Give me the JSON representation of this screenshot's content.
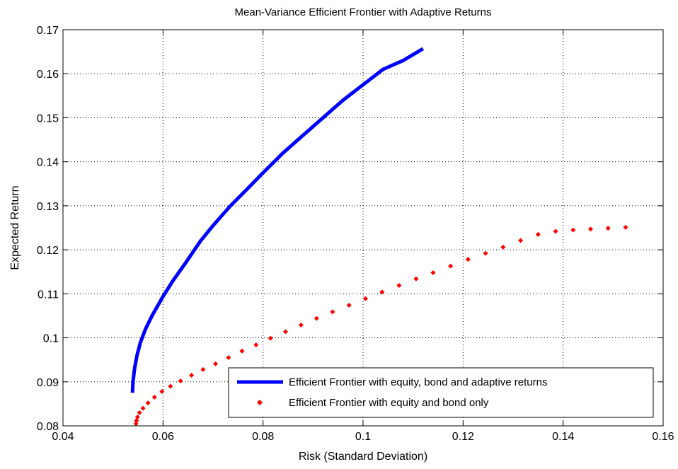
{
  "chart_data": {
    "type": "line",
    "title": "Mean-Variance Efficient Frontier with Adaptive Returns",
    "xlabel": "Risk (Standard Deviation)",
    "ylabel": "Expected Return",
    "xlim": [
      0.04,
      0.16
    ],
    "ylim": [
      0.08,
      0.17
    ],
    "xticks": [
      0.04,
      0.06,
      0.08,
      0.1,
      0.12,
      0.14,
      0.16
    ],
    "xtick_labels": [
      "0.04",
      "0.06",
      "0.08",
      "0.1",
      "0.12",
      "0.14",
      "0.16"
    ],
    "yticks": [
      0.08,
      0.09,
      0.1,
      0.11,
      0.12,
      0.13,
      0.14,
      0.15,
      0.16,
      0.17
    ],
    "ytick_labels": [
      "0.08",
      "0.09",
      "0.1",
      "0.11",
      "0.12",
      "0.13",
      "0.14",
      "0.15",
      "0.16",
      "0.17"
    ],
    "grid": true,
    "legend_position": "bottom-right",
    "series": [
      {
        "name": "Efficient Frontier with equity, bond and adaptive returns",
        "style": "line",
        "color": "#0000ff",
        "points": [
          [
            0.0539,
            0.0875
          ],
          [
            0.054,
            0.09
          ],
          [
            0.0543,
            0.093
          ],
          [
            0.0548,
            0.096
          ],
          [
            0.0555,
            0.099
          ],
          [
            0.0565,
            0.102
          ],
          [
            0.0578,
            0.105
          ],
          [
            0.0593,
            0.108
          ],
          [
            0.06,
            0.1094
          ],
          [
            0.062,
            0.113
          ],
          [
            0.0645,
            0.117
          ],
          [
            0.0675,
            0.122
          ],
          [
            0.07,
            0.1255
          ],
          [
            0.0735,
            0.13
          ],
          [
            0.077,
            0.134
          ],
          [
            0.08,
            0.1375
          ],
          [
            0.084,
            0.142
          ],
          [
            0.088,
            0.146
          ],
          [
            0.092,
            0.15
          ],
          [
            0.096,
            0.154
          ],
          [
            0.1,
            0.1575
          ],
          [
            0.104,
            0.161
          ],
          [
            0.108,
            0.163
          ],
          [
            0.112,
            0.1657
          ]
        ]
      },
      {
        "name": "Efficient Frontier with equity and bond only",
        "style": "markers",
        "color": "#ff0000",
        "points": [
          [
            0.0546,
            0.0805
          ],
          [
            0.0547,
            0.0812
          ],
          [
            0.0549,
            0.082
          ],
          [
            0.0553,
            0.083
          ],
          [
            0.056,
            0.084
          ],
          [
            0.057,
            0.0852
          ],
          [
            0.0583,
            0.0865
          ],
          [
            0.0598,
            0.0878
          ],
          [
            0.0615,
            0.089
          ],
          [
            0.0635,
            0.0902
          ],
          [
            0.0657,
            0.0915
          ],
          [
            0.068,
            0.0928
          ],
          [
            0.0705,
            0.0941
          ],
          [
            0.0731,
            0.0955
          ],
          [
            0.0758,
            0.097
          ],
          [
            0.0786,
            0.0984
          ],
          [
            0.0815,
            0.0999
          ],
          [
            0.0845,
            0.1014
          ],
          [
            0.0876,
            0.1029
          ],
          [
            0.0907,
            0.1044
          ],
          [
            0.0939,
            0.1059
          ],
          [
            0.0972,
            0.1074
          ],
          [
            0.1005,
            0.1089
          ],
          [
            0.1038,
            0.1104
          ],
          [
            0.1072,
            0.1119
          ],
          [
            0.1106,
            0.1134
          ],
          [
            0.114,
            0.1148
          ],
          [
            0.1175,
            0.1163
          ],
          [
            0.121,
            0.1178
          ],
          [
            0.1245,
            0.1192
          ],
          [
            0.128,
            0.1206
          ],
          [
            0.1315,
            0.1221
          ],
          [
            0.135,
            0.1235
          ],
          [
            0.1385,
            0.1242
          ],
          [
            0.142,
            0.1245
          ],
          [
            0.1455,
            0.1247
          ],
          [
            0.149,
            0.1249
          ],
          [
            0.1525,
            0.1251
          ]
        ]
      }
    ]
  }
}
